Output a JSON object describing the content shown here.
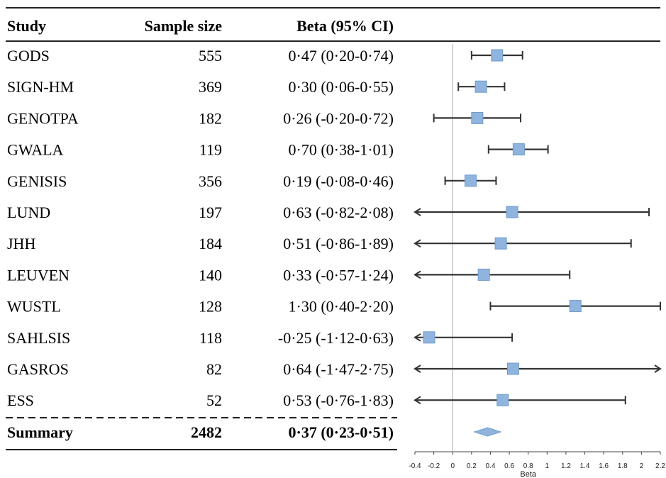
{
  "chart_data": {
    "type": "forest",
    "headers": {
      "study": "Study",
      "n": "Sample size",
      "ci": "Beta (95% CI)"
    },
    "xlabel": "Beta",
    "xlim": [
      -0.4,
      2.2
    ],
    "xticks": [
      -0.4,
      -0.2,
      0,
      0.2,
      0.4,
      0.6,
      0.8,
      1,
      1.2,
      1.4,
      1.6,
      1.8,
      2,
      2.2
    ],
    "xtick_labels": [
      "-0.4",
      "-0.2",
      "0",
      "0.2",
      "0.4",
      "0.6",
      "0.8",
      "1",
      "1.2",
      "1.4",
      "1.6",
      "1.8",
      "2",
      "2.2"
    ],
    "colors": {
      "marker": "#8fb4dd",
      "marker_edge": "#6f9acb",
      "line": "#333333",
      "zero": "#bbbbbb",
      "rule": "#222222"
    },
    "studies": [
      {
        "study": "GODS",
        "n": "555",
        "ci_text": "0·47 (0·20-0·74)",
        "beta": 0.47,
        "lo": 0.2,
        "hi": 0.74
      },
      {
        "study": "SIGN-HM",
        "n": "369",
        "ci_text": "0·30 (0·06-0·55)",
        "beta": 0.3,
        "lo": 0.06,
        "hi": 0.55
      },
      {
        "study": "GENOTPA",
        "n": "182",
        "ci_text": "0·26 (-0·20-0·72)",
        "beta": 0.26,
        "lo": -0.2,
        "hi": 0.72
      },
      {
        "study": "GWALA",
        "n": "119",
        "ci_text": "0·70 (0·38-1·01)",
        "beta": 0.7,
        "lo": 0.38,
        "hi": 1.01
      },
      {
        "study": "GENISIS",
        "n": "356",
        "ci_text": "0·19 (-0·08-0·46)",
        "beta": 0.19,
        "lo": -0.08,
        "hi": 0.46
      },
      {
        "study": "LUND",
        "n": "197",
        "ci_text": "0·63 (-0·82-2·08)",
        "beta": 0.63,
        "lo": -0.82,
        "hi": 2.08
      },
      {
        "study": "JHH",
        "n": "184",
        "ci_text": "0·51 (-0·86-1·89)",
        "beta": 0.51,
        "lo": -0.86,
        "hi": 1.89
      },
      {
        "study": "LEUVEN",
        "n": "140",
        "ci_text": "0·33 (-0·57-1·24)",
        "beta": 0.33,
        "lo": -0.57,
        "hi": 1.24
      },
      {
        "study": "WUSTL",
        "n": "128",
        "ci_text": "1·30 (0·40-2·20)",
        "beta": 1.3,
        "lo": 0.4,
        "hi": 2.2
      },
      {
        "study": "SAHLSIS",
        "n": "118",
        "ci_text": "-0·25 (-1·12-0·63)",
        "beta": -0.25,
        "lo": -1.12,
        "hi": 0.63
      },
      {
        "study": "GASROS",
        "n": "82",
        "ci_text": "0·64 (-1·47-2·75)",
        "beta": 0.64,
        "lo": -1.47,
        "hi": 2.75
      },
      {
        "study": "ESS",
        "n": "52",
        "ci_text": "0·53 (-0·76-1·83)",
        "beta": 0.53,
        "lo": -0.76,
        "hi": 1.83
      }
    ],
    "summary": {
      "study": "Summary",
      "n": "2482",
      "ci_text": "0·37 (0·23-0·51)",
      "beta": 0.37,
      "lo": 0.23,
      "hi": 0.51
    }
  }
}
